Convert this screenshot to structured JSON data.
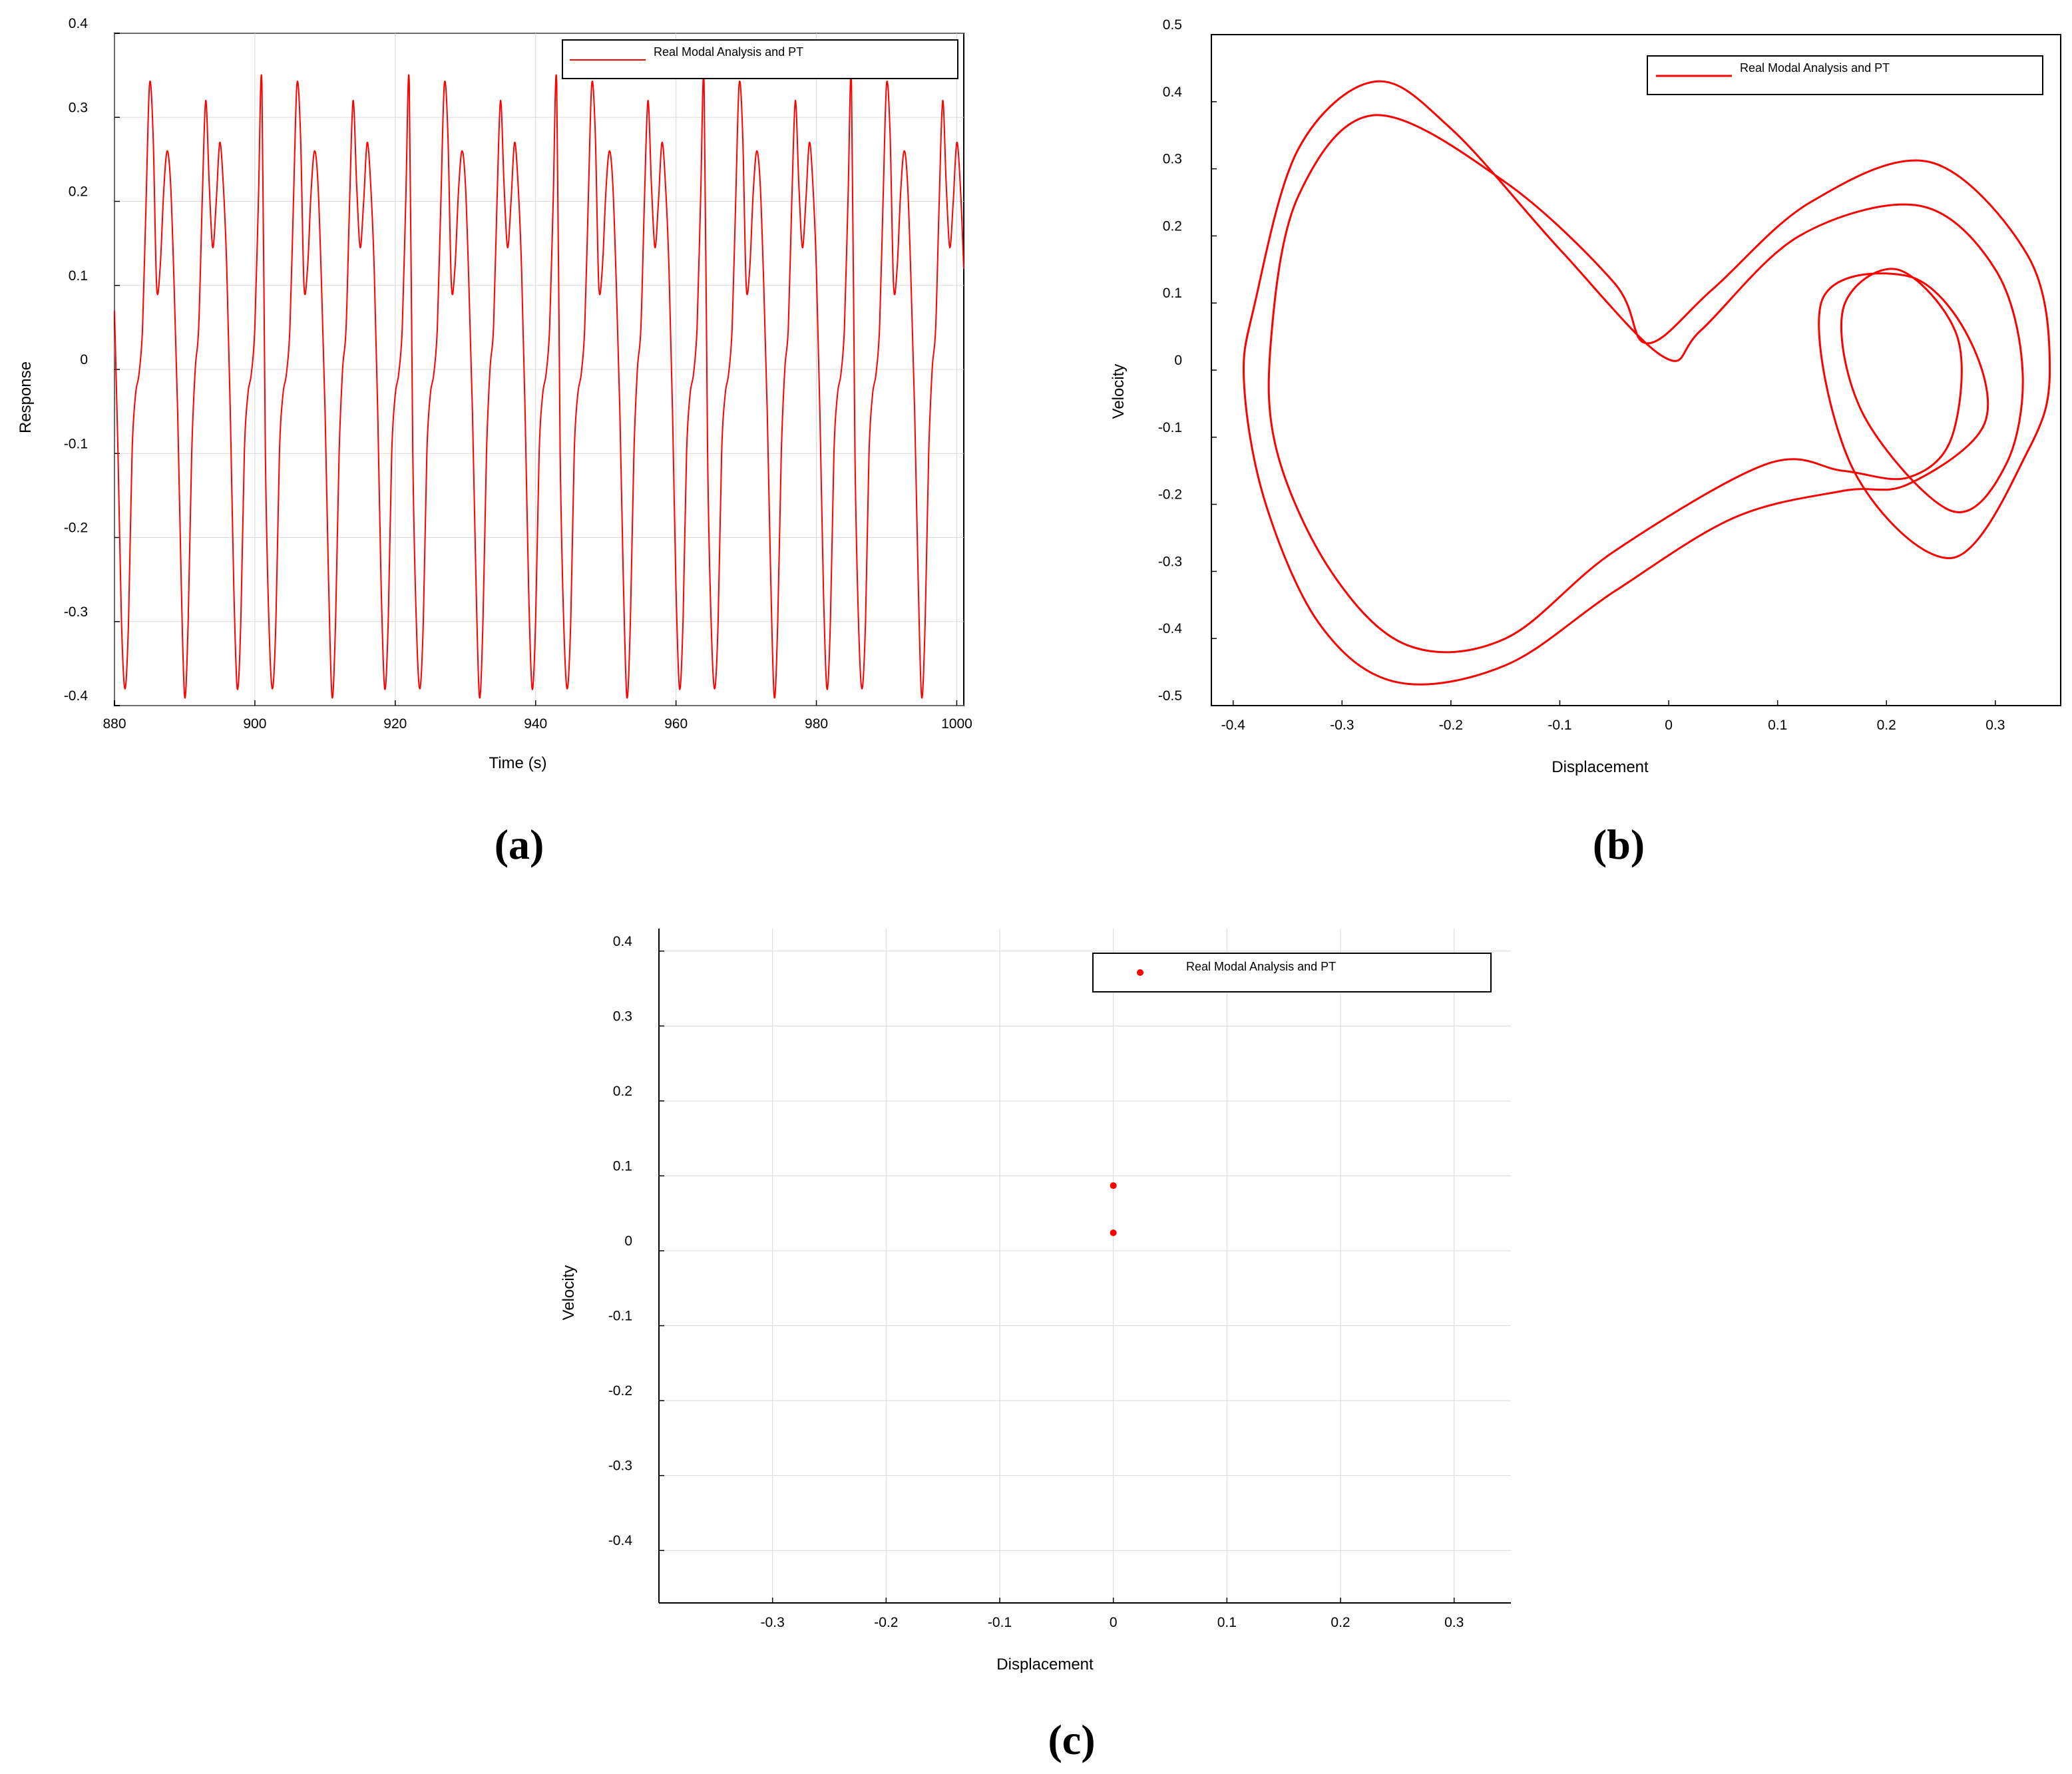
{
  "chart_data": [
    {
      "type": "line",
      "panel_label": "(a)",
      "xlabel": "Time (s)",
      "ylabel": "Response",
      "xlim": [
        880,
        1001
      ],
      "ylim": [
        -0.4,
        0.4
      ],
      "xticks": [
        "880",
        "900",
        "920",
        "940",
        "960",
        "980",
        "1000"
      ],
      "yticks": [
        "0.4",
        "0.3",
        "0.2",
        "0.1",
        "0",
        "-0.1",
        "-0.2",
        "-0.3",
        "-0.4"
      ],
      "grid": true,
      "legend": {
        "position": "top-right",
        "entries": [
          "Real Modal Analysis and PT"
        ]
      },
      "series": [
        {
          "name": "Real Modal Analysis and PT",
          "color": "#ff0000",
          "period": 21,
          "x": [
            880.0,
            880.5,
            881.0,
            881.5,
            882.0,
            882.5,
            883.0,
            883.5,
            884.0,
            884.5,
            885.0,
            885.5,
            886.0,
            886.5,
            887.0,
            887.5,
            888.0,
            888.5,
            889.0,
            889.5,
            890.0,
            890.5,
            891.0,
            891.5,
            892.0,
            892.5,
            893.0,
            893.5,
            894.0,
            894.5,
            895.0,
            895.5,
            896.0,
            896.5,
            897.0,
            897.5,
            898.0,
            898.5,
            899.0,
            899.5,
            900.0,
            900.5,
            901.0
          ],
          "y": [
            0.07,
            -0.1,
            -0.3,
            -0.38,
            -0.3,
            -0.1,
            -0.03,
            -0.005,
            0.05,
            0.2,
            0.34,
            0.28,
            0.1,
            0.12,
            0.21,
            0.26,
            0.22,
            0.1,
            -0.05,
            -0.25,
            -0.39,
            -0.3,
            -0.1,
            0.0,
            0.05,
            0.2,
            0.32,
            0.22,
            0.145,
            0.2,
            0.27,
            0.22,
            0.12,
            -0.05,
            -0.26,
            -0.38,
            -0.3,
            -0.1,
            -0.03,
            -0.005,
            0.05,
            0.2,
            0.34
          ]
        }
      ]
    },
    {
      "type": "line",
      "panel_label": "(b)",
      "xlabel": "Displacement",
      "ylabel": "Velocity",
      "xlim": [
        -0.42,
        0.36
      ],
      "ylim": [
        -0.5,
        0.5
      ],
      "xticks": [
        "-0.4",
        "-0.3",
        "-0.2",
        "-0.1",
        "0",
        "0.1",
        "0.2",
        "0.3"
      ],
      "yticks": [
        "0.5",
        "0.4",
        "0.3",
        "0.2",
        "0.1",
        "0",
        "-0.1",
        "-0.2",
        "-0.3",
        "-0.4",
        "-0.5"
      ],
      "grid": false,
      "legend": {
        "position": "top-right",
        "entries": [
          "Real Modal Analysis and PT"
        ]
      },
      "series": [
        {
          "name": "Real Modal Analysis and PT",
          "color": "#ff0000",
          "closed": true,
          "points": [
            [
              -0.005,
              0.02
            ],
            [
              -0.1,
              0.18
            ],
            [
              -0.2,
              0.36
            ],
            [
              -0.27,
              0.43
            ],
            [
              -0.34,
              0.33
            ],
            [
              -0.38,
              0.1
            ],
            [
              -0.39,
              -0.02
            ],
            [
              -0.37,
              -0.2
            ],
            [
              -0.32,
              -0.38
            ],
            [
              -0.25,
              -0.465
            ],
            [
              -0.15,
              -0.44
            ],
            [
              -0.05,
              -0.33
            ],
            [
              0.06,
              -0.22
            ],
            [
              0.16,
              -0.18
            ],
            [
              0.22,
              -0.17
            ],
            [
              0.29,
              -0.08
            ],
            [
              0.275,
              0.05
            ],
            [
              0.22,
              0.14
            ],
            [
              0.14,
              0.1
            ],
            [
              0.17,
              -0.15
            ],
            [
              0.26,
              -0.28
            ],
            [
              0.33,
              -0.12
            ],
            [
              0.35,
              0.0
            ],
            [
              0.33,
              0.17
            ],
            [
              0.24,
              0.31
            ],
            [
              0.13,
              0.25
            ],
            [
              0.04,
              0.12
            ],
            [
              -0.02,
              0.04
            ],
            [
              -0.05,
              0.13
            ],
            [
              -0.15,
              0.28
            ],
            [
              -0.27,
              0.38
            ],
            [
              -0.34,
              0.26
            ],
            [
              -0.365,
              0.05
            ],
            [
              -0.36,
              -0.12
            ],
            [
              -0.31,
              -0.3
            ],
            [
              -0.24,
              -0.41
            ],
            [
              -0.15,
              -0.4
            ],
            [
              -0.05,
              -0.27
            ],
            [
              0.09,
              -0.14
            ],
            [
              0.16,
              -0.15
            ],
            [
              0.22,
              -0.16
            ],
            [
              0.26,
              -0.1
            ],
            [
              0.265,
              0.05
            ],
            [
              0.21,
              0.15
            ],
            [
              0.16,
              0.09
            ],
            [
              0.18,
              -0.07
            ],
            [
              0.26,
              -0.21
            ],
            [
              0.31,
              -0.14
            ],
            [
              0.325,
              0.0
            ],
            [
              0.3,
              0.15
            ],
            [
              0.23,
              0.245
            ],
            [
              0.12,
              0.2
            ],
            [
              0.03,
              0.06
            ]
          ]
        }
      ]
    },
    {
      "type": "scatter",
      "panel_label": "(c)",
      "xlabel": "Displacement",
      "ylabel": "Velocity",
      "xlim": [
        -0.4,
        0.35
      ],
      "ylim": [
        -0.47,
        0.43
      ],
      "xticks": [
        "-0.3",
        "-0.2",
        "-0.1",
        "0",
        "0.1",
        "0.2",
        "0.3"
      ],
      "yticks": [
        "0.4",
        "0.3",
        "0.2",
        "0.1",
        "0",
        "-0.1",
        "-0.2",
        "-0.3",
        "-0.4"
      ],
      "grid": true,
      "legend": {
        "position": "top-right",
        "entries": [
          "Real Modal Analysis and PT"
        ]
      },
      "series": [
        {
          "name": "Real Modal Analysis and PT",
          "color": "#ff0000",
          "points": [
            [
              0.0,
              0.087
            ],
            [
              0.0,
              0.024
            ]
          ]
        }
      ]
    }
  ]
}
